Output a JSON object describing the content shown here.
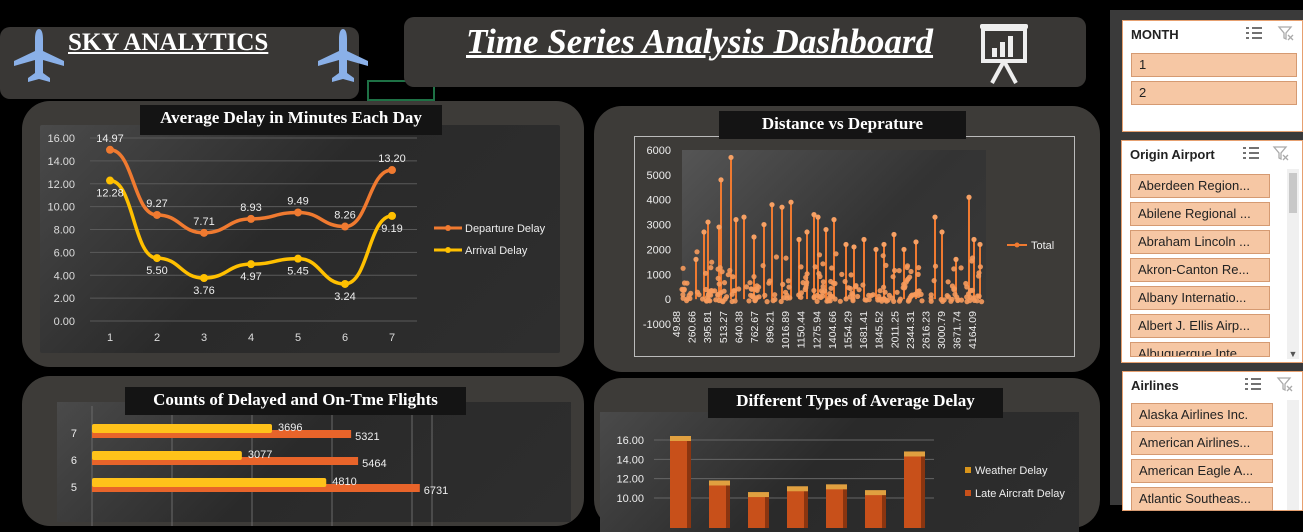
{
  "brand": {
    "title": "SKY ANALYTICS"
  },
  "header": {
    "title": "Time Series Analysis Dashboard"
  },
  "charts": {
    "delay_title": "Average Delay in Minutes Each Day",
    "distance_title": "Distance vs Deprature",
    "counts_title": "Counts of Delayed and On-Tme Flights",
    "types_title": "Different Types of Average Delay"
  },
  "slicers": {
    "month": {
      "title": "MONTH",
      "items": [
        "1",
        "2"
      ]
    },
    "origin": {
      "title": "Origin Airport",
      "items": [
        "Aberdeen Region...",
        "Abilene Regional ...",
        "Abraham Lincoln ...",
        "Akron-Canton Re...",
        "Albany Internatio...",
        "Albert J. Ellis Airp...",
        "Albuquerque Inte..."
      ]
    },
    "airlines": {
      "title": "Airlines",
      "items": [
        "Alaska Airlines Inc.",
        "American Airlines...",
        "American Eagle A...",
        "Atlantic Southeas..."
      ]
    }
  },
  "colors": {
    "orange": "#f07a30",
    "yellow": "#ffc000",
    "bar_dark": "#c8501a",
    "accent": "#f6c7a4"
  },
  "chart_data": [
    {
      "type": "line",
      "title": "Average Delay in Minutes Each Day",
      "categories": [
        "1",
        "2",
        "3",
        "4",
        "5",
        "6",
        "7"
      ],
      "ylim": [
        0,
        16
      ],
      "yticks": [
        "16.00",
        "14.00",
        "12.00",
        "10.00",
        "8.00",
        "6.00",
        "4.00",
        "2.00",
        "0.00"
      ],
      "legend": "right",
      "series": [
        {
          "name": "Departure Delay",
          "values": [
            14.97,
            9.27,
            7.71,
            8.93,
            9.49,
            8.26,
            13.2
          ],
          "labels": [
            "14.97",
            "9.27",
            "7.71",
            "8.93",
            "9.49",
            "8.26",
            "13.20"
          ]
        },
        {
          "name": "Arrival Delay",
          "values": [
            12.28,
            5.5,
            3.76,
            4.97,
            5.45,
            3.24,
            9.19
          ],
          "labels": [
            "12.28",
            "5.50",
            "3.76",
            "4.97",
            "5.45",
            "3.24",
            "9.19"
          ]
        }
      ]
    },
    {
      "type": "line",
      "title": "Distance vs Deprature",
      "ylim": [
        -1000,
        6000
      ],
      "yticks": [
        "6000",
        "5000",
        "4000",
        "3000",
        "2000",
        "1000",
        "0",
        "-1000"
      ],
      "xticks": [
        "49.88",
        "260.66",
        "395.81",
        "513.27",
        "640.38",
        "762.67",
        "896.21",
        "1016.89",
        "1150.44",
        "1275.94",
        "1404.66",
        "1554.29",
        "1681.41",
        "1845.52",
        "2011.25",
        "2344.31",
        "2616.23",
        "3000.79",
        "3671.74",
        "4164.09"
      ],
      "legend": "right",
      "series": [
        {
          "name": "Total"
        }
      ]
    },
    {
      "type": "bar",
      "title": "Counts of Delayed and On-Tme Flights",
      "categories": [
        "7",
        "6",
        "5"
      ],
      "series": [
        {
          "values": [
            3696,
            3077,
            4810
          ]
        },
        {
          "values": [
            5321,
            5464,
            6731
          ]
        }
      ],
      "xlim": [
        0,
        8000
      ]
    },
    {
      "type": "bar",
      "title": "Different Types of Average Delay",
      "yticks": [
        "16.00",
        "14.00",
        "12.00",
        "10.00"
      ],
      "ylim": [
        10,
        16
      ],
      "legend": "right",
      "series": [
        {
          "name": "Weather Delay"
        },
        {
          "name": "Late Aircraft Delay"
        }
      ],
      "values": [
        16.0,
        11.4,
        10.2,
        10.8,
        11.0,
        10.4,
        14.4
      ]
    }
  ]
}
